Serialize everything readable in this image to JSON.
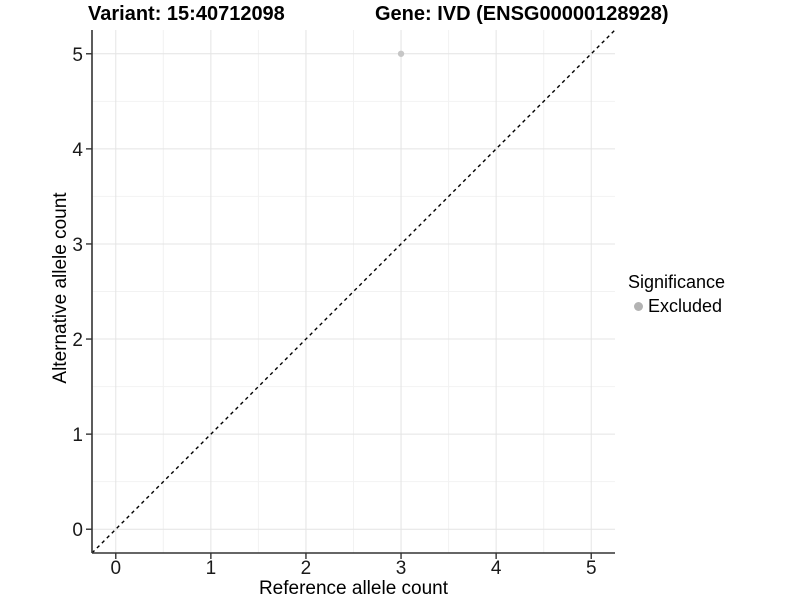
{
  "header": {
    "variant_title": "Variant: 15:40712098",
    "gene_title": "Gene: IVD (ENSG00000128928)"
  },
  "axes": {
    "x": {
      "label": "Reference allele count"
    },
    "y": {
      "label": "Alternative allele count"
    }
  },
  "legend": {
    "title": "Significance",
    "items": [
      {
        "label": "Excluded",
        "color": "#b3b3b3"
      }
    ]
  },
  "chart_data": {
    "type": "scatter",
    "title": "Variant: 15:40712098 / Gene: IVD (ENSG00000128928)",
    "xlabel": "Reference allele count",
    "ylabel": "Alternative allele count",
    "xlim": [
      -0.25,
      5.25
    ],
    "ylim": [
      -0.25,
      5.25
    ],
    "x_ticks": [
      0,
      1,
      2,
      3,
      4,
      5
    ],
    "y_ticks": [
      0,
      1,
      2,
      3,
      4,
      5
    ],
    "minor_gridlines": [
      0.5,
      1.5,
      2.5,
      3.5,
      4.5
    ],
    "grid": "major+minor",
    "legend_position": "right",
    "series": [
      {
        "name": "Excluded",
        "points": [
          {
            "x": 3,
            "y": 5
          }
        ],
        "color": "#c6c6c6"
      }
    ],
    "reference_line": {
      "type": "identity y=x",
      "style": "dashed",
      "from": [
        -0.25,
        -0.25
      ],
      "to": [
        5.25,
        5.25
      ],
      "color": "#000000"
    }
  },
  "style": {
    "background": "#ffffff",
    "grid_major_color": "#e4e4e4",
    "grid_minor_color": "#f2f2f2",
    "axis_line_color": "#333333",
    "tick_color": "#333333",
    "tick_label_color": "#1a1a1a"
  }
}
